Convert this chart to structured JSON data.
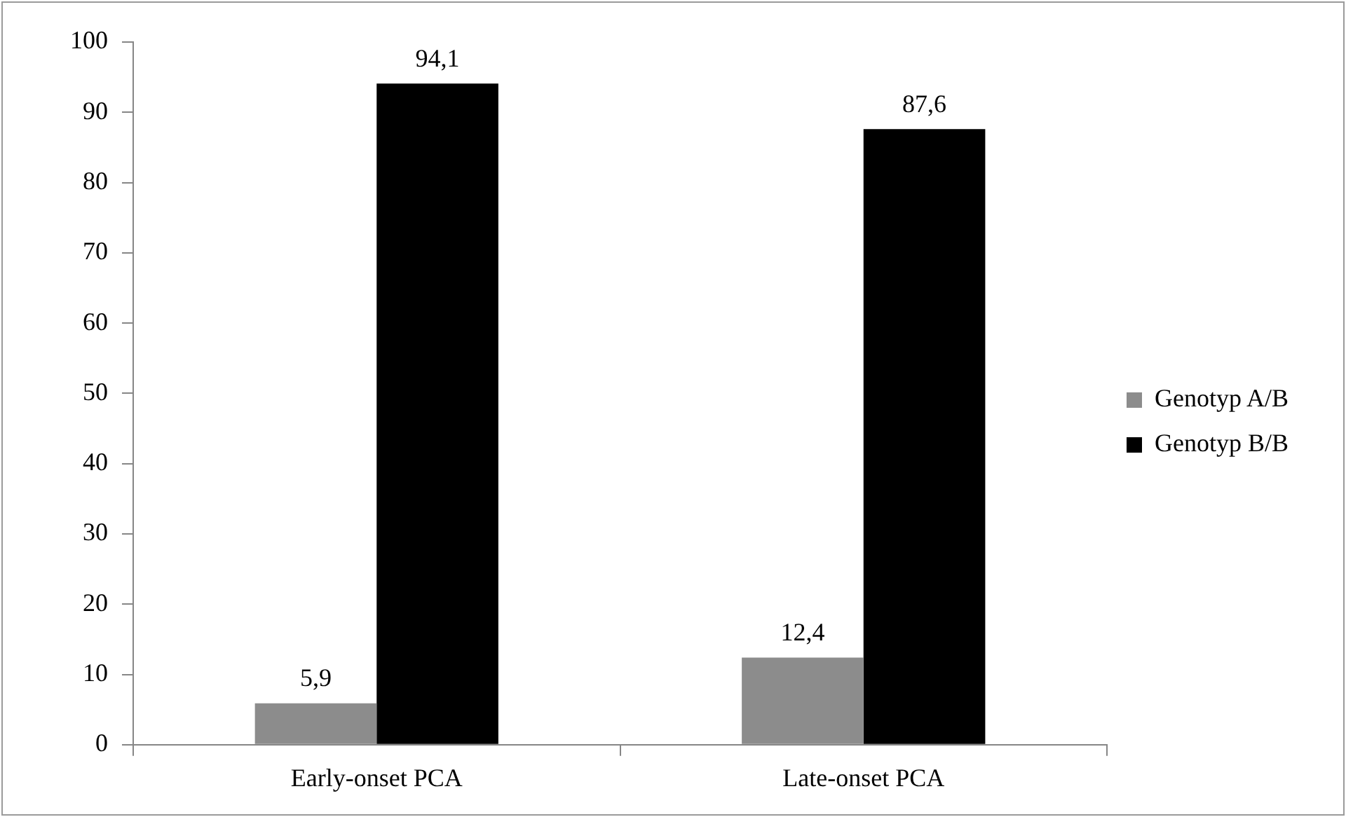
{
  "chart_data": {
    "type": "bar",
    "categories": [
      "Early-onset PCA",
      "Late-onset PCA"
    ],
    "series": [
      {
        "name": "Genotyp A/B",
        "color": "#8c8c8c",
        "values": [
          5.9,
          12.4
        ],
        "value_labels": [
          "5,9",
          "12,4"
        ]
      },
      {
        "name": "Genotyp B/B",
        "color": "#000000",
        "values": [
          94.1,
          87.6
        ],
        "value_labels": [
          "94,1",
          "87,6"
        ]
      }
    ],
    "ylim": [
      0,
      100
    ],
    "yticks": [
      0,
      10,
      20,
      30,
      40,
      50,
      60,
      70,
      80,
      90,
      100
    ],
    "grid": false,
    "legend": "right"
  }
}
